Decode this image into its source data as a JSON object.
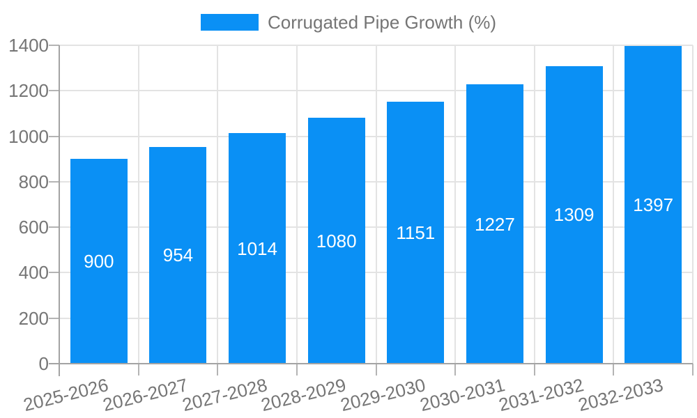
{
  "chart_data": {
    "type": "bar",
    "title": "Corrugated Pipe Growth (%)",
    "legend": {
      "position": "top-center",
      "entries": [
        "Corrugated Pipe Growth (%)"
      ]
    },
    "categories": [
      "2025-2026",
      "2026-2027",
      "2027-2028",
      "2028-2029",
      "2029-2030",
      "2030-2031",
      "2031-2032",
      "2032-2033"
    ],
    "series": [
      {
        "name": "Corrugated Pipe Growth (%)",
        "values": [
          900,
          954,
          1014,
          1080,
          1151,
          1227,
          1309,
          1397
        ]
      }
    ],
    "values": [
      900,
      954,
      1014,
      1080,
      1151,
      1227,
      1309,
      1397
    ],
    "value_labels": [
      "900",
      "954",
      "1014",
      "1080",
      "1151",
      "1227",
      "1309",
      "1397"
    ],
    "xlabel": "",
    "ylabel": "",
    "ylim": [
      0,
      1400
    ],
    "yticks": [
      0,
      200,
      400,
      600,
      800,
      1000,
      1200,
      1400
    ],
    "grid": "horizontal and vertical light-gray gridlines",
    "x_label_rotation_deg": -14,
    "colors": {
      "bar": "#0a90f5",
      "grid": "#e3e3e3",
      "axis": "#a3a3a3",
      "tick": "#b4b4b4",
      "label": "#757575",
      "value_label": "#ffffff",
      "background": "#ffffff"
    }
  }
}
